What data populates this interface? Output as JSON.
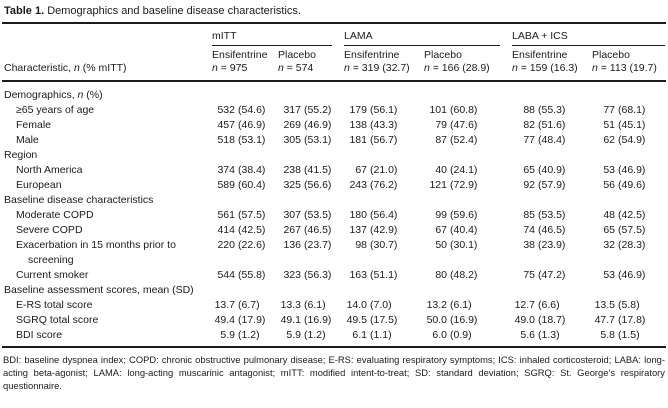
{
  "title": {
    "label": "Table 1.",
    "text": " Demographics and baseline disease characteristics."
  },
  "table": {
    "char_header": {
      "pre": "Characteristic, ",
      "italic": "n",
      "post": " (% mITT)"
    },
    "groups": [
      {
        "label": "mITT",
        "cols": [
          {
            "name": "Ensifentrine",
            "n_italic": "n",
            "n_rest": " = 975"
          },
          {
            "name": "Placebo",
            "n_italic": "n",
            "n_rest": " = 574"
          }
        ]
      },
      {
        "label": "LAMA",
        "cols": [
          {
            "name": "Ensifentrine",
            "n_italic": "n",
            "n_rest": " = 319 (32.7)"
          },
          {
            "name": "Placebo",
            "n_italic": "n",
            "n_rest": " = 166 (28.9)"
          }
        ]
      },
      {
        "label": "LABA + ICS",
        "cols": [
          {
            "name": "Ensifentrine",
            "n_italic": "n",
            "n_rest": " = 159 (16.3)"
          },
          {
            "name": "Placebo",
            "n_italic": "n",
            "n_rest": " = 113 (19.7)"
          }
        ]
      }
    ],
    "rows": [
      {
        "indent": 0,
        "label": [
          {
            "t": "Demographics, "
          },
          {
            "t": "n",
            "i": true
          },
          {
            "t": " (%)"
          }
        ],
        "cells": []
      },
      {
        "indent": 1,
        "label": [
          {
            "t": "≥65 years of age"
          }
        ],
        "cells": [
          [
            "532",
            "(54.6)"
          ],
          [
            "317",
            "(55.2)"
          ],
          [
            "179",
            "(56.1)"
          ],
          [
            "101",
            "(60.8)"
          ],
          [
            "88",
            "(55.3)"
          ],
          [
            "77",
            "(68.1)"
          ]
        ]
      },
      {
        "indent": 1,
        "label": [
          {
            "t": "Female"
          }
        ],
        "cells": [
          [
            "457",
            "(46.9)"
          ],
          [
            "269",
            "(46.9)"
          ],
          [
            "138",
            "(43.3)"
          ],
          [
            "79",
            "(47.6)"
          ],
          [
            "82",
            "(51.6)"
          ],
          [
            "51",
            "(45.1)"
          ]
        ]
      },
      {
        "indent": 1,
        "label": [
          {
            "t": "Male"
          }
        ],
        "cells": [
          [
            "518",
            "(53.1)"
          ],
          [
            "305",
            "(53.1)"
          ],
          [
            "181",
            "(56.7)"
          ],
          [
            "87",
            "(52.4)"
          ],
          [
            "77",
            "(48.4)"
          ],
          [
            "62",
            "(54.9)"
          ]
        ]
      },
      {
        "indent": 0,
        "label": [
          {
            "t": "Region"
          }
        ],
        "cells": []
      },
      {
        "indent": 1,
        "label": [
          {
            "t": "North America"
          }
        ],
        "cells": [
          [
            "374",
            "(38.4)"
          ],
          [
            "238",
            "(41.5)"
          ],
          [
            "67",
            "(21.0)"
          ],
          [
            "40",
            "(24.1)"
          ],
          [
            "65",
            "(40.9)"
          ],
          [
            "53",
            "(46.9)"
          ]
        ]
      },
      {
        "indent": 1,
        "label": [
          {
            "t": "European"
          }
        ],
        "cells": [
          [
            "589",
            "(60.4)"
          ],
          [
            "325",
            "(56.6)"
          ],
          [
            "243",
            "(76.2)"
          ],
          [
            "121",
            "(72.9)"
          ],
          [
            "92",
            "(57.9)"
          ],
          [
            "56",
            "(49.6)"
          ]
        ]
      },
      {
        "indent": 0,
        "label": [
          {
            "t": "Baseline disease characteristics"
          }
        ],
        "cells": []
      },
      {
        "indent": 1,
        "label": [
          {
            "t": "Moderate COPD"
          }
        ],
        "cells": [
          [
            "561",
            "(57.5)"
          ],
          [
            "307",
            "(53.5)"
          ],
          [
            "180",
            "(56.4)"
          ],
          [
            "99",
            "(59.6)"
          ],
          [
            "85",
            "(53.5)"
          ],
          [
            "48",
            "(42.5)"
          ]
        ]
      },
      {
        "indent": 1,
        "label": [
          {
            "t": "Severe COPD"
          }
        ],
        "cells": [
          [
            "414",
            "(42.5)"
          ],
          [
            "267",
            "(46.5)"
          ],
          [
            "137",
            "(42.9)"
          ],
          [
            "67",
            "(40.4)"
          ],
          [
            "74",
            "(46.5)"
          ],
          [
            "65",
            "(57.5)"
          ]
        ]
      },
      {
        "indent": 1,
        "label": [
          {
            "t": "Exacerbation in 15 months prior to screening"
          }
        ],
        "cells": [
          [
            "220",
            "(22.6)"
          ],
          [
            "136",
            "(23.7)"
          ],
          [
            "98",
            "(30.7)"
          ],
          [
            "50",
            "(30.1)"
          ],
          [
            "38",
            "(23.9)"
          ],
          [
            "32",
            "(28.3)"
          ]
        ]
      },
      {
        "indent": 1,
        "label": [
          {
            "t": "Current smoker"
          }
        ],
        "cells": [
          [
            "544",
            "(55.8)"
          ],
          [
            "323",
            "(56.3)"
          ],
          [
            "163",
            "(51.1)"
          ],
          [
            "80",
            "(48.2)"
          ],
          [
            "75",
            "(47.2)"
          ],
          [
            "53",
            "(46.9)"
          ]
        ]
      },
      {
        "indent": 0,
        "label": [
          {
            "t": "Baseline assessment scores, mean (SD)"
          }
        ],
        "cells": []
      },
      {
        "indent": 1,
        "label": [
          {
            "t": "E-RS total score"
          }
        ],
        "cells": [
          [
            "13.7",
            "(6.7)"
          ],
          [
            "13.3",
            "(6.1)"
          ],
          [
            "14.0",
            "(7.0)"
          ],
          [
            "13.2",
            "(6.1)"
          ],
          [
            "12.7",
            "(6.6)"
          ],
          [
            "13.5",
            "(5.8)"
          ]
        ]
      },
      {
        "indent": 1,
        "label": [
          {
            "t": "SGRQ total score"
          }
        ],
        "cells": [
          [
            "49.4",
            "(17.9)"
          ],
          [
            "49.1",
            "(16.9)"
          ],
          [
            "49.5",
            "(17.5)"
          ],
          [
            "50.0",
            "(16.9)"
          ],
          [
            "49.0",
            "(18.7)"
          ],
          [
            "47.7",
            "(17.8)"
          ]
        ]
      },
      {
        "indent": 1,
        "label": [
          {
            "t": "BDI score"
          }
        ],
        "cells": [
          [
            "5.9",
            "(1.2)"
          ],
          [
            "5.9",
            "(1.2)"
          ],
          [
            "6.1",
            "(1.1)"
          ],
          [
            "6.0",
            "(0.9)"
          ],
          [
            "5.6",
            "(1.3)"
          ],
          [
            "5.8",
            "(1.5)"
          ]
        ]
      }
    ]
  },
  "footnote": "BDI: baseline dyspnea index; COPD: chronic obstructive pulmonary disease; E-RS: evaluating respiratory symptoms; ICS: inhaled corticosteroid; LABA: long-acting beta-agonist; LAMA: long-acting muscarinic antagonist; mITT: modified intent-to-treat; SD: standard deviation; SGRQ: St. George’s respiratory questionnaire."
}
